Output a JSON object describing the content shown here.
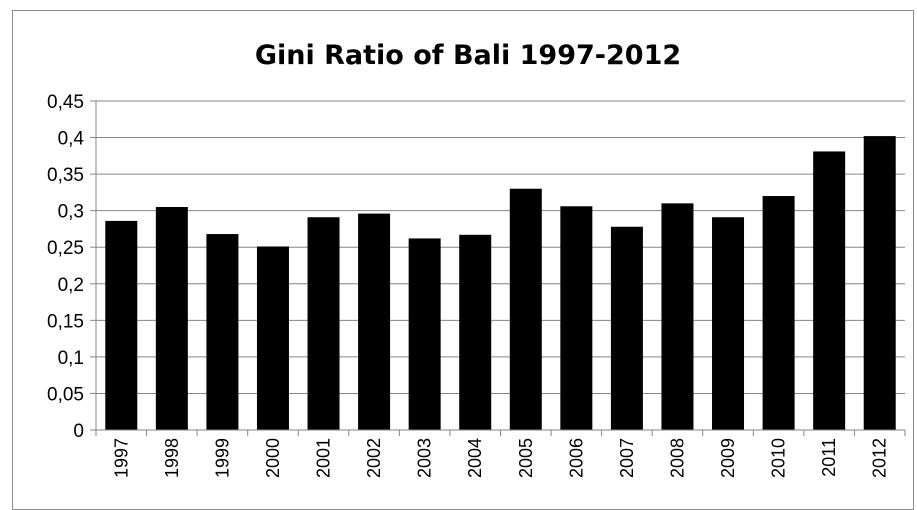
{
  "chart_data": {
    "type": "bar",
    "title": "Gini Ratio of Bali 1997-2012",
    "xlabel": "",
    "ylabel": "",
    "categories": [
      "1997",
      "1998",
      "1999",
      "2000",
      "2001",
      "2002",
      "2003",
      "2004",
      "2005",
      "2006",
      "2007",
      "2008",
      "2009",
      "2010",
      "2011",
      "2012"
    ],
    "values": [
      0.286,
      0.305,
      0.268,
      0.251,
      0.291,
      0.296,
      0.262,
      0.267,
      0.33,
      0.306,
      0.278,
      0.31,
      0.291,
      0.32,
      0.381,
      0.402
    ],
    "ylim": [
      0,
      0.45
    ],
    "yticks": [
      0,
      0.05,
      0.1,
      0.15,
      0.2,
      0.25,
      0.3,
      0.35,
      0.4,
      0.45
    ],
    "ytick_labels": [
      "0",
      "0,05",
      "0,1",
      "0,15",
      "0,2",
      "0,25",
      "0,3",
      "0,35",
      "0,4",
      "0,45"
    ],
    "grid": true,
    "legend": "none",
    "bar_color": "#000000",
    "grid_color": "#868686"
  }
}
